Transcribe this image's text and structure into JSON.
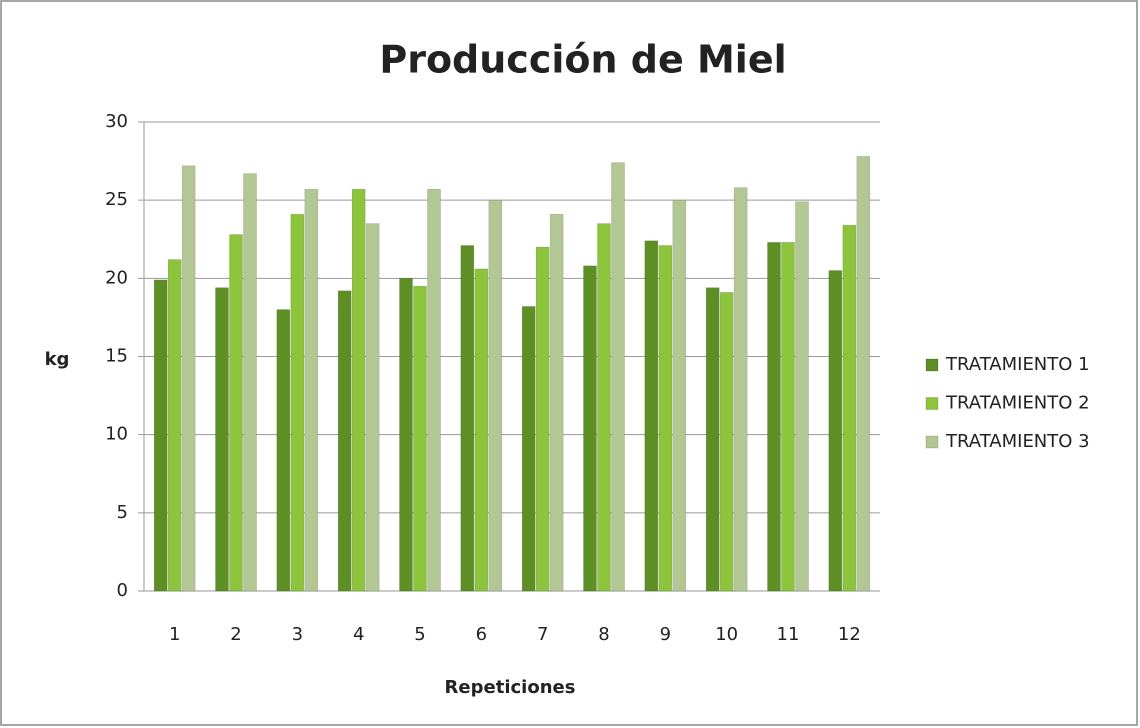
{
  "chart_data": {
    "type": "bar",
    "title": "Producción de Miel",
    "x_label": "Repeticiones",
    "y_label": "kg",
    "categories": [
      "1",
      "2",
      "3",
      "4",
      "5",
      "6",
      "7",
      "8",
      "9",
      "10",
      "11",
      "12"
    ],
    "series": [
      {
        "name": "TRATAMIENTO 1",
        "color": "#5e8f24",
        "values": [
          19.9,
          19.4,
          18.0,
          19.2,
          20.0,
          22.1,
          18.2,
          20.8,
          22.4,
          19.4,
          22.3,
          20.5
        ]
      },
      {
        "name": "TRATAMIENTO 2",
        "color": "#8cc43c",
        "values": [
          21.2,
          22.8,
          24.1,
          25.7,
          19.5,
          20.6,
          22.0,
          23.5,
          22.1,
          19.1,
          22.3,
          23.4
        ]
      },
      {
        "name": "TRATAMIENTO 3",
        "color": "#b3c795",
        "values": [
          27.2,
          26.7,
          25.7,
          23.5,
          25.7,
          25.0,
          24.1,
          27.4,
          25.0,
          25.8,
          24.9,
          27.8
        ]
      }
    ],
    "ylim": [
      0,
      30
    ],
    "yticks": [
      0,
      5,
      10,
      15,
      20,
      25,
      30
    ],
    "grid": true,
    "legend": "right"
  }
}
